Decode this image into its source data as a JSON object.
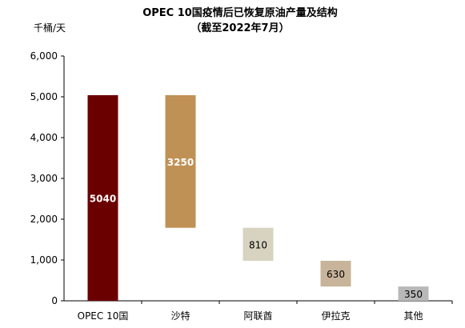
{
  "chart_data": {
    "type": "bar",
    "subtype": "waterfall",
    "title": "OPEC 10国疫情后已恢复原油产量及结构",
    "subtitle": "（截至2022年7月）",
    "ylabel": "千桶/天",
    "xlabel": "",
    "ylim": [
      0,
      6000
    ],
    "yticks": [
      0,
      1000,
      2000,
      3000,
      4000,
      5000,
      6000
    ],
    "ytick_labels": [
      "0",
      "1,000",
      "2,000",
      "3,000",
      "4,000",
      "5,000",
      "6,000"
    ],
    "grid": false,
    "legend": "none",
    "categories": [
      "OPEC 10国",
      "沙特",
      "阿联酋",
      "伊拉克",
      "其他"
    ],
    "values": [
      5040,
      3250,
      810,
      630,
      350
    ],
    "bar_bottoms": [
      0,
      1790,
      980,
      350,
      0
    ],
    "data_labels": [
      "5040",
      "3250",
      "810",
      "630",
      "350"
    ],
    "colors": [
      "#6b0000",
      "#c09155",
      "#d7d3c0",
      "#c8b49a",
      "#b8b8b8"
    ],
    "label_light": [
      true,
      true,
      false,
      false,
      false
    ]
  }
}
